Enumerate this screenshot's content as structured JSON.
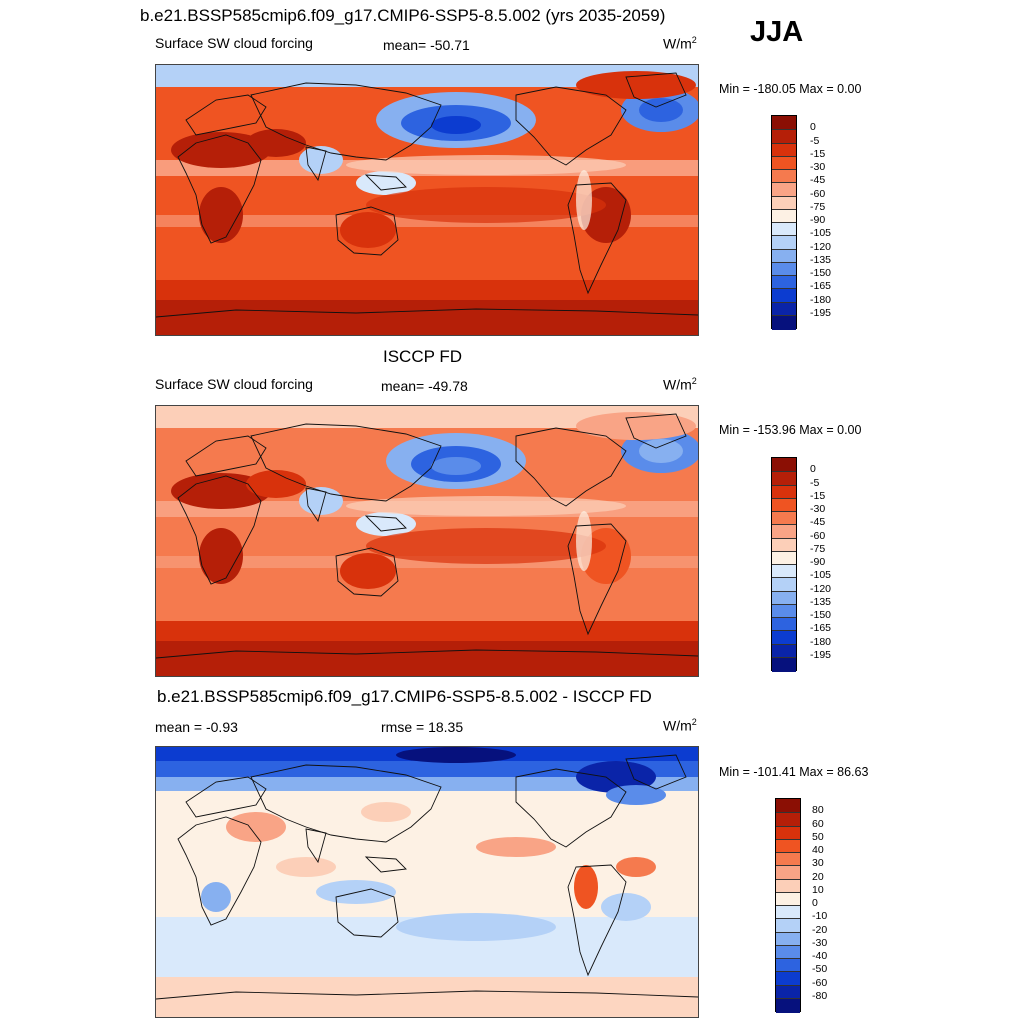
{
  "season": "JJA",
  "panels": [
    {
      "title": "b.e21.BSSP585cmip6.f09_g17.CMIP6-SSP5-8.5.002 (yrs 2035-2059)",
      "left_label": "Surface SW cloud forcing",
      "mid_label": "mean= -50.71",
      "unit": "W/m",
      "unit_exp": "2",
      "minmax": "Min = -180.05 Max =   0.00",
      "colorbar": {
        "labels": [
          "0",
          "-5",
          "-15",
          "-30",
          "-45",
          "-60",
          "-75",
          "-90",
          "-105",
          "-120",
          "-135",
          "-150",
          "-165",
          "-180",
          "-195"
        ],
        "colors": [
          "#8b0f04",
          "#b51f08",
          "#d8320c",
          "#ef5422",
          "#f57a4e",
          "#f9a486",
          "#fccfb8",
          "#fdf1e4",
          "#d9e9fb",
          "#b4d1f7",
          "#87b0f0",
          "#5a8cea",
          "#2d63e0",
          "#0c3cd0",
          "#0a24a8",
          "#06117d"
        ]
      },
      "map_style": "model"
    },
    {
      "title": "ISCCP FD",
      "left_label": "Surface SW cloud forcing",
      "mid_label": "mean= -49.78",
      "unit": "W/m",
      "unit_exp": "2",
      "minmax": "Min = -153.96 Max =   0.00",
      "colorbar": {
        "labels": [
          "0",
          "-5",
          "-15",
          "-30",
          "-45",
          "-60",
          "-75",
          "-90",
          "-105",
          "-120",
          "-135",
          "-150",
          "-165",
          "-180",
          "-195"
        ],
        "colors": [
          "#8b0f04",
          "#b51f08",
          "#d8320c",
          "#ef5422",
          "#f57a4e",
          "#f9a486",
          "#fccfb8",
          "#fdf1e4",
          "#d9e9fb",
          "#b4d1f7",
          "#87b0f0",
          "#5a8cea",
          "#2d63e0",
          "#0c3cd0",
          "#0a24a8",
          "#06117d"
        ]
      },
      "map_style": "obs"
    },
    {
      "title": "b.e21.BSSP585cmip6.f09_g17.CMIP6-SSP5-8.5.002 - ISCCP FD",
      "left_label": "mean =  -0.93",
      "mid_label": "rmse =  18.35",
      "unit": "W/m",
      "unit_exp": "2",
      "minmax": "Min = -101.41 Max =  86.63",
      "colorbar": {
        "labels": [
          "80",
          "60",
          "50",
          "40",
          "30",
          "20",
          "10",
          "0",
          "-10",
          "-20",
          "-30",
          "-40",
          "-50",
          "-60",
          "-80"
        ],
        "colors": [
          "#8b0f04",
          "#b51f08",
          "#d8320c",
          "#ef5422",
          "#f57a4e",
          "#f9a486",
          "#fccfb8",
          "#fdf1e4",
          "#d9e9fb",
          "#b4d1f7",
          "#87b0f0",
          "#5a8cea",
          "#2d63e0",
          "#0c3cd0",
          "#0a24a8",
          "#06117d"
        ]
      },
      "map_style": "diff"
    }
  ]
}
